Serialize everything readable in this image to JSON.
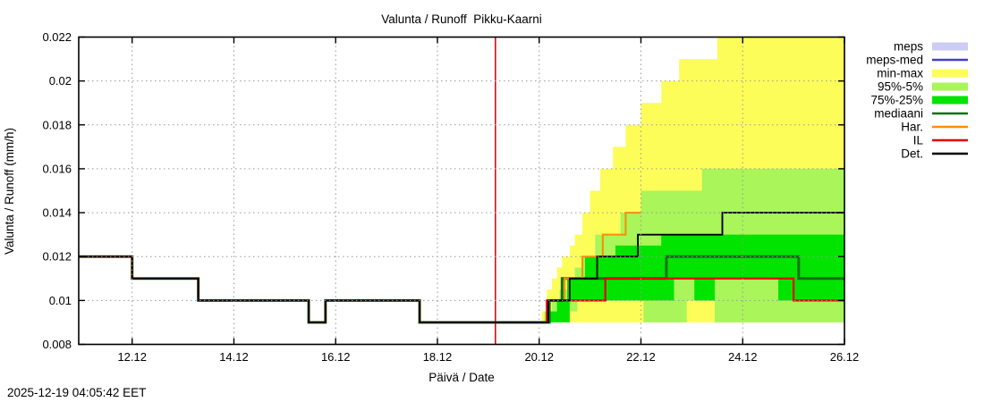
{
  "title": "Valunta / Runoff  Pikku-Kaarni",
  "timestamp": "2025-12-19 04:05:42 EET",
  "legend": [
    {
      "label": "meps",
      "swatch": "band",
      "color": "#ccccf4"
    },
    {
      "label": "meps-med",
      "swatch": "line",
      "color": "#4040cc"
    },
    {
      "label": "min-max",
      "swatch": "band",
      "color": "#fdfd5a"
    },
    {
      "label": "95%-5%",
      "swatch": "band",
      "color": "#a9f55a"
    },
    {
      "label": "75%-25%",
      "swatch": "band",
      "color": "#00e400"
    },
    {
      "label": "mediaani",
      "swatch": "line",
      "color": "#107010"
    },
    {
      "label": "Har.",
      "swatch": "line",
      "color": "#ff8c00"
    },
    {
      "label": "IL",
      "swatch": "line",
      "color": "#e60000"
    },
    {
      "label": "Det.",
      "swatch": "line",
      "color": "#000000"
    }
  ],
  "chart_data": {
    "type": "line",
    "title": "Valunta / Runoff  Pikku-Kaarni",
    "xlabel": "Päivä / Date",
    "ylabel": "Valunta / Runoff (mm/h)",
    "xlim": [
      10.95,
      26.0
    ],
    "ylim": [
      0.008,
      0.022
    ],
    "x_ticks": {
      "values": [
        12,
        14,
        16,
        18,
        20,
        22,
        24,
        26
      ],
      "labels": [
        "12.12",
        "14.12",
        "16.12",
        "18.12",
        "20.12",
        "22.12",
        "24.12",
        "26.12"
      ]
    },
    "y_ticks": {
      "values": [
        0.008,
        0.01,
        0.012,
        0.014,
        0.016,
        0.018,
        0.02,
        0.022
      ],
      "labels": [
        "0.008",
        "0.01",
        "0.012",
        "0.014",
        "0.016",
        "0.018",
        "0.02",
        "0.022"
      ]
    },
    "grid_color": "#999999",
    "now_line": {
      "x": 19.14,
      "color": "#cc0000"
    },
    "bands": [
      {
        "name": "min-max",
        "color": "#fdfd5a",
        "upper": [
          [
            20.05,
            0.0095
          ],
          [
            20.15,
            0.0105
          ],
          [
            20.25,
            0.011
          ],
          [
            20.35,
            0.0115
          ],
          [
            20.45,
            0.012
          ],
          [
            20.6,
            0.0125
          ],
          [
            20.7,
            0.013
          ],
          [
            20.85,
            0.014
          ],
          [
            21.0,
            0.015
          ],
          [
            21.2,
            0.016
          ],
          [
            21.45,
            0.017
          ],
          [
            21.7,
            0.018
          ],
          [
            22.0,
            0.019
          ],
          [
            22.4,
            0.02
          ],
          [
            22.75,
            0.021
          ],
          [
            23.5,
            0.0225
          ],
          [
            26.0,
            0.0225
          ]
        ],
        "lower": [
          [
            20.05,
            0.009
          ],
          [
            26.0,
            0.009
          ]
        ]
      },
      {
        "name": "95%-5%",
        "color": "#a9f55a",
        "upper": [
          [
            20.1,
            0.0095
          ],
          [
            20.25,
            0.01
          ],
          [
            20.4,
            0.0105
          ],
          [
            20.55,
            0.011
          ],
          [
            20.7,
            0.0115
          ],
          [
            20.85,
            0.012
          ],
          [
            21.1,
            0.013
          ],
          [
            21.6,
            0.014
          ],
          [
            22.0,
            0.015
          ],
          [
            23.2,
            0.016
          ],
          [
            26.0,
            0.016
          ]
        ],
        "lower": [
          [
            20.1,
            0.009
          ],
          [
            20.55,
            0.0095
          ],
          [
            20.75,
            0.01
          ],
          [
            22.05,
            0.009
          ],
          [
            22.9,
            0.01
          ],
          [
            23.45,
            0.009
          ],
          [
            26.0,
            0.009
          ]
        ]
      },
      {
        "name": "75%-25%",
        "color": "#00e400",
        "upper": [
          [
            20.2,
            0.0095
          ],
          [
            20.35,
            0.01
          ],
          [
            20.55,
            0.011
          ],
          [
            20.9,
            0.012
          ],
          [
            21.5,
            0.0125
          ],
          [
            22.4,
            0.013
          ],
          [
            26.0,
            0.013
          ]
        ],
        "lower": [
          [
            20.2,
            0.009
          ],
          [
            20.6,
            0.01
          ],
          [
            22.65,
            0.011
          ],
          [
            23.05,
            0.01
          ],
          [
            23.45,
            0.011
          ],
          [
            24.7,
            0.01
          ],
          [
            26.0,
            0.01
          ]
        ]
      }
    ],
    "series": [
      {
        "name": "mediaani",
        "color": "#107010",
        "width": 3.0,
        "points": [
          [
            10.95,
            0.012
          ],
          [
            12.0,
            0.011
          ],
          [
            13.3,
            0.01
          ],
          [
            15.47,
            0.009
          ],
          [
            15.8,
            0.01
          ],
          [
            17.65,
            0.009
          ],
          [
            20.2,
            0.01
          ],
          [
            20.45,
            0.011
          ],
          [
            22.5,
            0.012
          ],
          [
            25.1,
            0.011
          ],
          [
            26.0,
            0.011
          ]
        ]
      },
      {
        "name": "Har.",
        "color": "#ff8c00",
        "width": 2.0,
        "points": [
          [
            20.05,
            0.009
          ],
          [
            20.18,
            0.01
          ],
          [
            20.5,
            0.011
          ],
          [
            20.85,
            0.012
          ],
          [
            21.25,
            0.013
          ],
          [
            21.7,
            0.014
          ],
          [
            22.0,
            0.014
          ]
        ]
      },
      {
        "name": "IL",
        "color": "#e60000",
        "width": 2.2,
        "points": [
          [
            10.95,
            0.012
          ],
          [
            12.0,
            0.011
          ],
          [
            13.3,
            0.01
          ],
          [
            15.47,
            0.009
          ],
          [
            15.8,
            0.01
          ],
          [
            17.65,
            0.009
          ],
          [
            20.15,
            0.01
          ],
          [
            21.3,
            0.011
          ],
          [
            25.0,
            0.01
          ],
          [
            26.0,
            0.01
          ]
        ]
      },
      {
        "name": "Det.",
        "color": "#000000",
        "width": 1.9,
        "points": [
          [
            10.95,
            0.012
          ],
          [
            12.0,
            0.011
          ],
          [
            13.3,
            0.01
          ],
          [
            15.47,
            0.009
          ],
          [
            15.8,
            0.01
          ],
          [
            17.65,
            0.009
          ],
          [
            20.18,
            0.01
          ],
          [
            20.6,
            0.011
          ],
          [
            21.14,
            0.012
          ],
          [
            21.94,
            0.013
          ],
          [
            23.6,
            0.014
          ],
          [
            26.0,
            0.014
          ]
        ]
      }
    ]
  }
}
